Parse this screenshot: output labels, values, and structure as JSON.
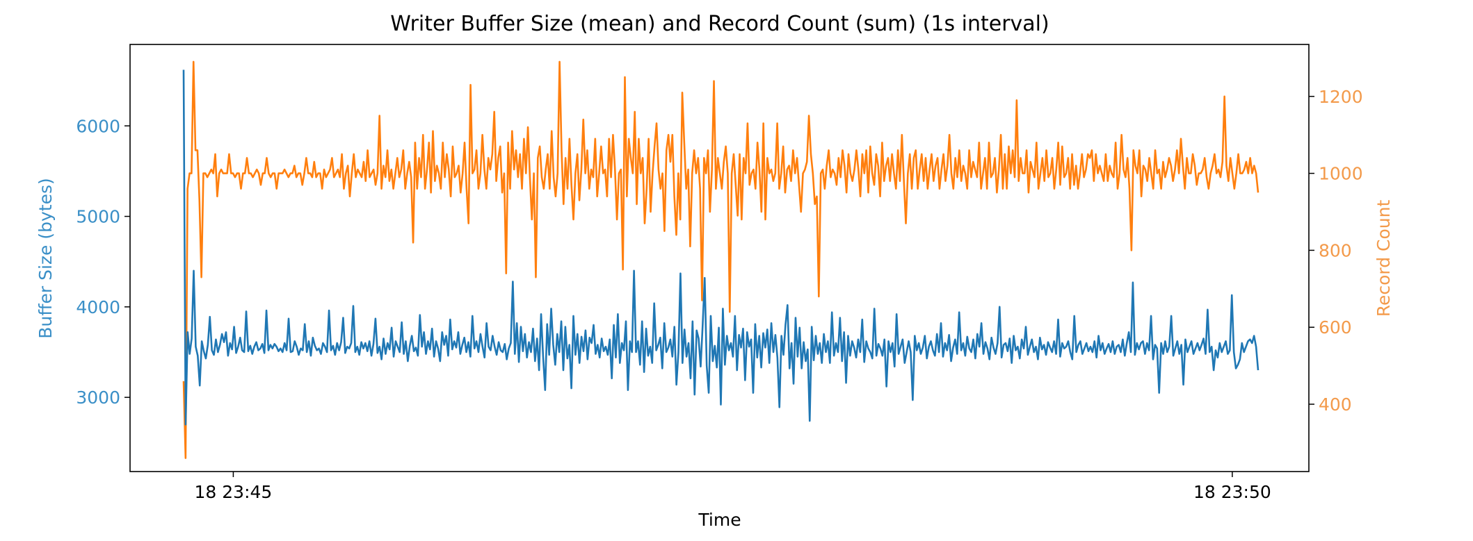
{
  "chart_data": {
    "type": "line",
    "title": "Writer Buffer Size (mean) and Record Count (sum) (1s interval)",
    "xlabel": "Time",
    "x_ticks": [
      "18 23:45",
      "18 23:50"
    ],
    "x_range_seconds": [
      -31,
      323
    ],
    "grid": false,
    "legend": "none",
    "colors": {
      "buffer": "#1f77b4",
      "records": "#ff7f0e",
      "buffer_axis_text": "#3a8fc7",
      "records_axis_text": "#f39a4a"
    },
    "y_left": {
      "label": "Buffer Size (bytes)",
      "ticks": [
        3000,
        4000,
        5000,
        6000
      ],
      "range": [
        2180,
        6900
      ]
    },
    "y_right": {
      "label": "Record Count",
      "ticks": [
        400,
        600,
        800,
        1000,
        1200
      ],
      "range": [
        225,
        1335
      ]
    },
    "series": [
      {
        "axis": "left",
        "values": [
          6620,
          2700,
          3720,
          3480,
          3650,
          4400,
          3560,
          3460,
          3130,
          3620,
          3510,
          3430,
          3580,
          3890,
          3520,
          3470,
          3640,
          3500,
          3580,
          3700,
          3610,
          3720,
          3460,
          3600,
          3530,
          3780,
          3490,
          3560,
          3660,
          3520,
          3500,
          3950,
          3510,
          3570,
          3480,
          3560,
          3610,
          3520,
          3540,
          3590,
          3490,
          3960,
          3520,
          3580,
          3540,
          3590,
          3560,
          3510,
          3540,
          3500,
          3600,
          3520,
          3870,
          3500,
          3510,
          3620,
          3560,
          3470,
          3540,
          3520,
          3810,
          3500,
          3620,
          3460,
          3660,
          3570,
          3520,
          3540,
          3480,
          3600,
          3560,
          3500,
          3960,
          3520,
          3570,
          3470,
          3600,
          3520,
          3610,
          3880,
          3490,
          3560,
          3540,
          3600,
          4010,
          3500,
          3560,
          3470,
          3610,
          3540,
          3600,
          3510,
          3620,
          3460,
          3590,
          3870,
          3490,
          3560,
          3420,
          3650,
          3480,
          3600,
          3530,
          3770,
          3450,
          3620,
          3560,
          3500,
          3830,
          3480,
          3620,
          3400,
          3570,
          3680,
          3510,
          3550,
          3460,
          3910,
          3560,
          3720,
          3480,
          3620,
          3530,
          3760,
          3450,
          3620,
          3540,
          3400,
          3720,
          3580,
          3680,
          3460,
          3860,
          3530,
          3620,
          3550,
          3720,
          3480,
          3580,
          3660,
          3500,
          3610,
          3450,
          3900,
          3540,
          3620,
          3500,
          3700,
          3560,
          3440,
          3820,
          3560,
          3520,
          3680,
          3560,
          3470,
          3610,
          3520,
          3500,
          3590,
          3420,
          3540,
          3600,
          4280,
          3480,
          3820,
          3390,
          3780,
          3510,
          3700,
          3440,
          3610,
          3500,
          3760,
          3400,
          3650,
          3300,
          3920,
          3450,
          3080,
          3810,
          3470,
          3980,
          3580,
          3360,
          3700,
          3500,
          3840,
          3300,
          3780,
          3430,
          3580,
          3100,
          3900,
          3470,
          3700,
          3380,
          3670,
          3510,
          3740,
          3420,
          3660,
          3600,
          3800,
          3480,
          3580,
          3440,
          3650,
          3510,
          3560,
          3470,
          3640,
          3210,
          3800,
          3440,
          3920,
          3380,
          3600,
          3520,
          3840,
          3080,
          3620,
          3500,
          4400,
          3500,
          3620,
          3360,
          3840,
          3280,
          3760,
          3460,
          3560,
          3380,
          4040,
          3520,
          3580,
          3660,
          3320,
          3820,
          3500,
          3550,
          3640,
          3450,
          3780,
          3140,
          3500,
          4370,
          3380,
          3750,
          3450,
          3600,
          3210,
          3840,
          3030,
          3740,
          3650,
          3340,
          3800,
          4320,
          3350,
          3050,
          3900,
          3400,
          3570,
          3330,
          3770,
          2920,
          3980,
          3360,
          3680,
          3520,
          3600,
          3450,
          3900,
          3300,
          3690,
          3550,
          3760,
          3190,
          3720,
          3560,
          3640,
          3050,
          3810,
          3440,
          3680,
          3330,
          3710,
          3550,
          3750,
          3380,
          3820,
          3500,
          3690,
          3440,
          2890,
          3680,
          3470,
          3800,
          4020,
          3320,
          3600,
          3150,
          3880,
          3450,
          3770,
          3320,
          3610,
          3400,
          3530,
          2740,
          3780,
          3410,
          3680,
          3480,
          3600,
          3380,
          3700,
          3500,
          3620,
          3380,
          3940,
          3460,
          3600,
          3500,
          3880,
          3400,
          3720,
          3160,
          3680,
          3460,
          3620,
          3550,
          3440,
          3640,
          3500,
          3860,
          3390,
          3620,
          3540,
          3500,
          3430,
          3980,
          3460,
          3590,
          3540,
          3460,
          3640,
          3120,
          3620,
          3500,
          3600,
          3340,
          3920,
          3480,
          3560,
          3640,
          3380,
          3500,
          3620,
          3500,
          2970,
          3680,
          3520,
          3600,
          3480,
          3550,
          3680,
          3430,
          3560,
          3620,
          3520,
          3460,
          3700,
          3500,
          3820,
          3450,
          3600,
          3520,
          3690,
          3400,
          3550,
          3640,
          3480,
          3940,
          3520,
          3600,
          3460,
          3670,
          3540,
          3500,
          3640,
          3430,
          3700,
          3560,
          3820,
          3480,
          3610,
          3540,
          3420,
          3660,
          3550,
          3480,
          3600,
          4000,
          3440,
          3580,
          3600,
          3510,
          3650,
          3380,
          3680,
          3520,
          3560,
          3430,
          3640,
          3540,
          3780,
          3470,
          3560,
          3640,
          3500,
          3560,
          3420,
          3660,
          3530,
          3580,
          3470,
          3610,
          3550,
          3500,
          3620,
          3480,
          3860,
          3450,
          3600,
          3540,
          3560,
          3620,
          3500,
          3420,
          3900,
          3500,
          3580,
          3620,
          3480,
          3540,
          3600,
          3510,
          3560,
          3500,
          3620,
          3440,
          3680,
          3520,
          3600,
          3480,
          3540,
          3590,
          3500,
          3620,
          3480,
          3560,
          3580,
          3500,
          3640,
          3460,
          3600,
          3720,
          3500,
          4270,
          3470,
          3600,
          3530,
          3600,
          3620,
          3480,
          3600,
          3520,
          3900,
          3420,
          3580,
          3540,
          3050,
          3600,
          3480,
          3620,
          3500,
          3560,
          3900,
          3460,
          3540,
          3620,
          3480,
          3580,
          3140,
          3640,
          3500,
          3560,
          3620,
          3480,
          3540,
          3600,
          3520,
          3580,
          3650,
          3480,
          3970,
          3500,
          3560,
          3300,
          3520,
          3440,
          3600,
          3500,
          3560,
          3620,
          3480,
          3520,
          4130,
          3500,
          3320,
          3360,
          3420,
          3600,
          3500,
          3560,
          3620,
          3640,
          3600,
          3680,
          3560,
          3300
        ]
      },
      {
        "axis": "right",
        "values": [
          460,
          260,
          960,
          1000,
          1000,
          1290,
          1060,
          1060,
          930,
          730,
          1000,
          1000,
          990,
          1000,
          1010,
          1000,
          1050,
          940,
          1000,
          1010,
          1000,
          1000,
          1000,
          1050,
          1000,
          1000,
          990,
          1000,
          1000,
          960,
          1000,
          1000,
          1040,
          1000,
          1000,
          990,
          1000,
          1010,
          1000,
          970,
          1000,
          1000,
          1040,
          1000,
          990,
          1000,
          1000,
          960,
          1000,
          1000,
          1000,
          1010,
          1000,
          990,
          1000,
          1000,
          1020,
          990,
          1000,
          1000,
          970,
          1000,
          1040,
          1000,
          1000,
          990,
          1030,
          990,
          1000,
          1000,
          960,
          1010,
          990,
          1000,
          1010,
          1040,
          990,
          1000,
          1010,
          990,
          1050,
          960,
          1000,
          1020,
          940,
          1000,
          1050,
          990,
          1010,
          1000,
          990,
          1030,
          980,
          1060,
          990,
          1000,
          1010,
          970,
          1000,
          1150,
          960,
          1020,
          990,
          1060,
          980,
          1010,
          960,
          1000,
          1040,
          990,
          1010,
          1060,
          960,
          1000,
          1030,
          990,
          820,
          1080,
          960,
          1040,
          990,
          1100,
          960,
          1010,
          1080,
          950,
          1110,
          980,
          1020,
          1000,
          960,
          1080,
          990,
          1050,
          1010,
          940,
          1070,
          990,
          1000,
          1020,
          950,
          1000,
          1080,
          960,
          870,
          1230,
          1000,
          1010,
          1060,
          960,
          1000,
          1100,
          1010,
          960,
          1040,
          1010,
          1050,
          1160,
          980,
          1040,
          1070,
          950,
          1000,
          740,
          1080,
          960,
          1110,
          1010,
          1060,
          990,
          1050,
          960,
          1090,
          1000,
          1120,
          990,
          880,
          1000,
          730,
          1040,
          1070,
          990,
          960,
          1010,
          1050,
          960,
          1110,
          990,
          940,
          1000,
          1290,
          1060,
          920,
          1040,
          960,
          1090,
          970,
          880,
          1000,
          1050,
          930,
          1010,
          1140,
          1000,
          1060,
          960,
          1010,
          990,
          1090,
          940,
          1000,
          1070,
          1000,
          1010,
          940,
          1090,
          990,
          1100,
          1010,
          880,
          1000,
          1010,
          750,
          1250,
          940,
          1090,
          1040,
          1000,
          1160,
          920,
          1090,
          1000,
          1040,
          870,
          960,
          1090,
          900,
          1000,
          1070,
          1130,
          1010,
          960,
          1000,
          850,
          1060,
          1100,
          1030,
          1100,
          940,
          840,
          1000,
          880,
          1210,
          1080,
          960,
          1010,
          810,
          1000,
          1060,
          1000,
          1040,
          960,
          670,
          1040,
          1000,
          1060,
          900,
          1010,
          1240,
          960,
          1040,
          1000,
          960,
          1030,
          1070,
          1000,
          640,
          1000,
          1050,
          970,
          890,
          1050,
          880,
          1040,
          1000,
          1130,
          970,
          1000,
          1010,
          960,
          1080,
          1010,
          900,
          1130,
          880,
          1040,
          1000,
          1010,
          980,
          1000,
          1130,
          960,
          1000,
          1070,
          950,
          1010,
          1020,
          980,
          1060,
          1000,
          1040,
          970,
          900,
          1000,
          1010,
          1030,
          1150,
          1050,
          1000,
          920,
          940,
          680,
          1000,
          1010,
          960,
          1020,
          1060,
          990,
          1010,
          1000,
          970,
          1040,
          990,
          1060,
          1020,
          950,
          1050,
          1000,
          980,
          1010,
          1060,
          1010,
          940,
          1050,
          1000,
          1060,
          950,
          1070,
          1000,
          970,
          1050,
          1020,
          940,
          1080,
          980,
          1020,
          1040,
          980,
          1050,
          1000,
          960,
          1060,
          980,
          1100,
          980,
          870,
          1000,
          1050,
          960,
          1040,
          1060,
          960,
          1010,
          1050,
          980,
          1040,
          960,
          1010,
          1050,
          980,
          1020,
          1040,
          960,
          1010,
          1050,
          980,
          1020,
          1100,
          1000,
          960,
          1040,
          990,
          1060,
          980,
          1020,
          1000,
          960,
          1060,
          990,
          1030,
          1010,
          990,
          1080,
          960,
          1000,
          1040,
          960,
          1080,
          990,
          1000,
          1040,
          950,
          1010,
          1100,
          960,
          1050,
          960,
          1070,
          1000,
          1060,
          990,
          1190,
          980,
          1040,
          1000,
          1000,
          1060,
          950,
          1030,
          1010,
          990,
          1080,
          960,
          1000,
          1040,
          980,
          1060,
          990,
          1000,
          1040,
          960,
          1010,
          1080,
          970,
          1070,
          990,
          1000,
          1040,
          960,
          1050,
          970,
          1020,
          960,
          1000,
          1050,
          990,
          1010,
          1050,
          1040,
          1060,
          980,
          1050,
          1000,
          1020,
          1000,
          980,
          1050,
          980,
          1020,
          1000,
          990,
          1080,
          960,
          1000,
          1100,
          1010,
          990,
          1040,
          960,
          800,
          1060,
          1020,
          1000,
          1060,
          940,
          1020,
          1010,
          980,
          1040,
          1000,
          960,
          1060,
          1000,
          1010,
          960,
          1030,
          990,
          1010,
          1040,
          1020,
          980,
          1010,
          1060,
          1000,
          1090,
          1020,
          960,
          1040,
          1000,
          1000,
          1050,
          1020,
          970,
          1000,
          1000,
          1010,
          1040,
          990,
          960,
          1000,
          1020,
          1050,
          1000,
          1010,
          990,
          1030,
          1200,
          1020,
          980,
          1040,
          1000,
          960,
          1000,
          1050,
          1000,
          1000,
          1010,
          1030,
          1000,
          1040,
          1000,
          1020,
          1000,
          950
        ]
      }
    ]
  }
}
